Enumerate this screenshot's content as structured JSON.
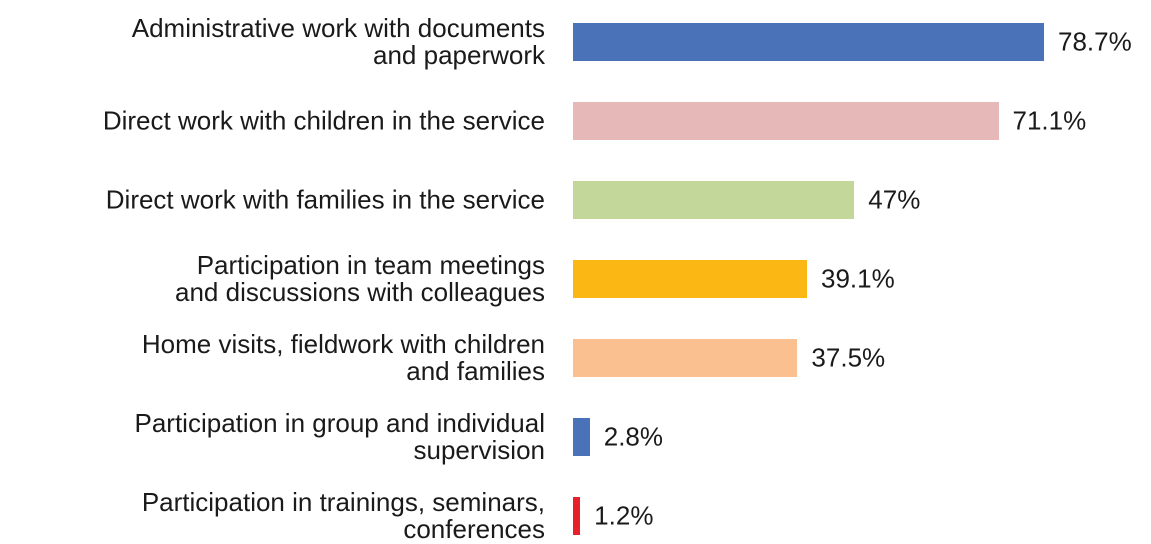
{
  "chart_data": {
    "type": "bar",
    "orientation": "horizontal",
    "categories": [
      "Administrative work with documents\nand paperwork",
      "Direct work with children in the service",
      "Direct work with families in the service",
      "Participation in team meetings\nand discussions with colleagues",
      "Home visits, fieldwork with children\nand families",
      "Participation in group and individual\nsupervision",
      "Participation in trainings, seminars,\nconferences"
    ],
    "values": [
      78.7,
      71.1,
      47,
      39.1,
      37.5,
      2.8,
      1.2
    ],
    "value_labels": [
      "78.7%",
      "71.1%",
      "47%",
      "39.1%",
      "37.5%",
      "2.8%",
      "1.2%"
    ],
    "colors": [
      "#4a72b8",
      "#e6b8b7",
      "#c4d79b",
      "#fbb714",
      "#fac090",
      "#4a72b8",
      "#e8202a"
    ]
  }
}
